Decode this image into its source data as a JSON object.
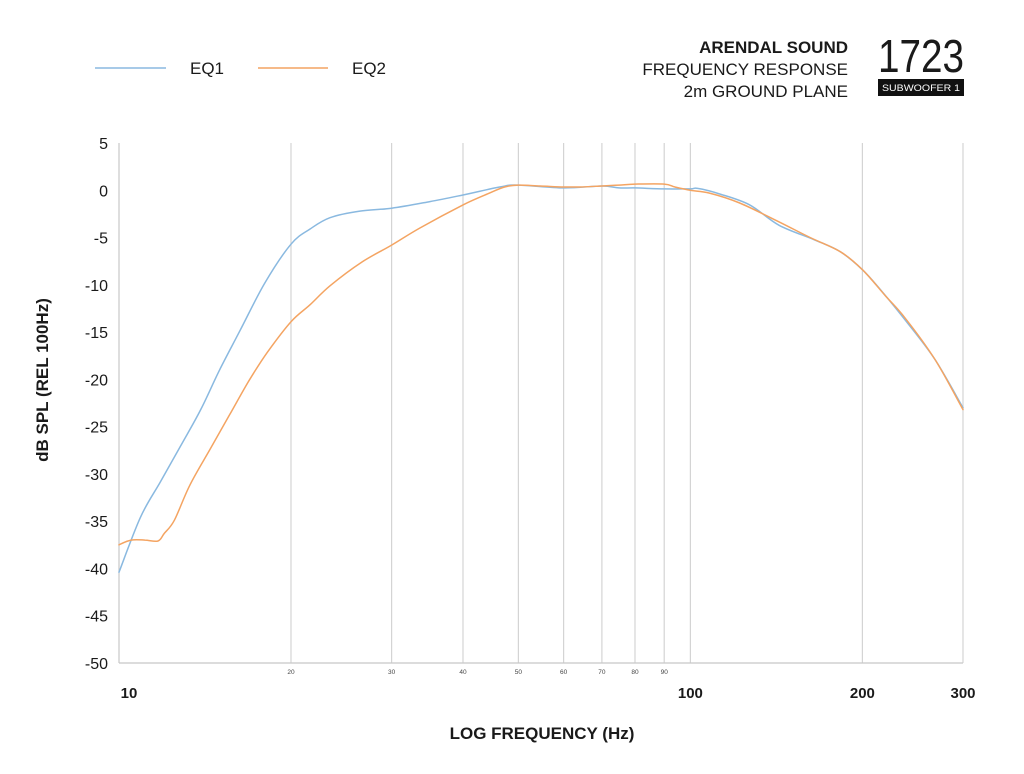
{
  "header": {
    "brand": "ARENDAL SOUND",
    "line_1": "FREQUENCY RESPONSE",
    "line_2": "2m GROUND PLANE"
  },
  "logo": {
    "model": "1723",
    "badge": "SUBWOOFER 1"
  },
  "chart_data": {
    "type": "line",
    "xlabel": "LOG FREQUENCY (Hz)",
    "ylabel": "dB SPL (REL 100Hz)",
    "xscale": "log",
    "xlim": [
      10,
      300
    ],
    "ylim": [
      -50,
      5
    ],
    "yticks": [
      5,
      0,
      -5,
      -10,
      -15,
      -20,
      -25,
      -30,
      -35,
      -40,
      -45,
      -50
    ],
    "xticks_major": [
      10,
      100,
      200,
      300
    ],
    "xticks_minor": [
      20,
      30,
      40,
      50,
      60,
      70,
      80,
      90
    ],
    "grid": "vertical",
    "legend_position": "top-left",
    "series": [
      {
        "name": "EQ1",
        "color": "#8ab9e0",
        "x": [
          10,
          10.9,
          11.8,
          12.8,
          13.9,
          15.0,
          16.3,
          18.0,
          20,
          21.6,
          23.4,
          26.4,
          30,
          35,
          40,
          46.4,
          50,
          60,
          70,
          75,
          80,
          90,
          100,
          103,
          112.7,
          127,
          143,
          165,
          183,
          200,
          215,
          237.5,
          268,
          300
        ],
        "y": [
          -40.4,
          -34.6,
          -30.9,
          -27.1,
          -23.2,
          -19.0,
          -14.8,
          -9.8,
          -5.7,
          -4.1,
          -2.9,
          -2.2,
          -1.9,
          -1.2,
          -0.5,
          0.35,
          0.55,
          0.25,
          0.45,
          0.25,
          0.25,
          0.15,
          0.15,
          0.2,
          -0.4,
          -1.55,
          -3.7,
          -5.25,
          -6.5,
          -8.4,
          -10.5,
          -13.7,
          -17.9,
          -23.0
        ]
      },
      {
        "name": "EQ2",
        "color": "#f4a462",
        "x": [
          10,
          10.5,
          11.1,
          11.7,
          12.0,
          12.5,
          13.3,
          14.4,
          15.6,
          16.9,
          18.2,
          20,
          21.6,
          23.4,
          26.6,
          30,
          33.6,
          40,
          44.5,
          47.3,
          50,
          54.6,
          60,
          64,
          70,
          75,
          80,
          90,
          94,
          100,
          108,
          122,
          143,
          162,
          183,
          200,
          219,
          237.5,
          268,
          300
        ],
        "y": [
          -37.5,
          -37.0,
          -37.0,
          -37.1,
          -36.3,
          -34.9,
          -31.2,
          -27.5,
          -23.8,
          -20.1,
          -17.1,
          -13.9,
          -12.1,
          -10.1,
          -7.6,
          -5.8,
          -4.0,
          -1.55,
          -0.3,
          0.35,
          0.55,
          0.45,
          0.35,
          0.35,
          0.45,
          0.55,
          0.65,
          0.65,
          0.35,
          0.0,
          -0.3,
          -1.35,
          -3.35,
          -5.0,
          -6.5,
          -8.4,
          -11.1,
          -13.5,
          -17.9,
          -23.2
        ]
      }
    ]
  }
}
